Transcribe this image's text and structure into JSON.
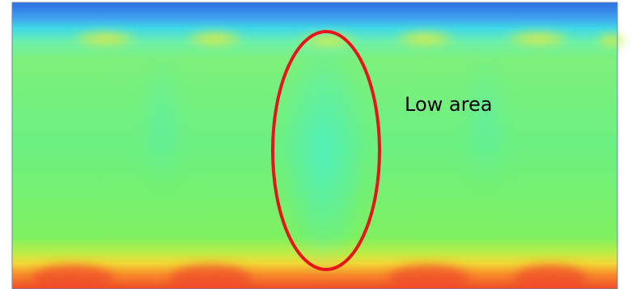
{
  "annotation": {
    "label": "Low area"
  }
}
